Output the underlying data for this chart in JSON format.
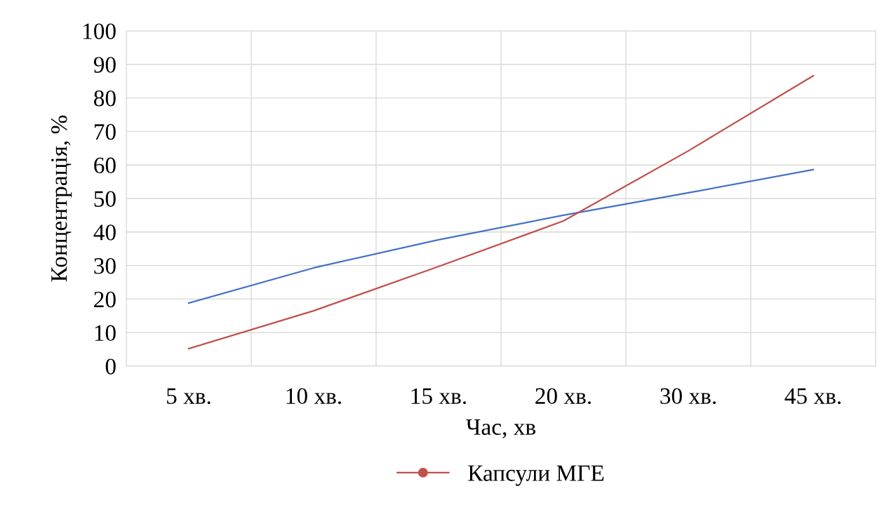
{
  "chart_data": {
    "type": "line",
    "xlabel": "Час, хв",
    "ylabel": "Концентрація, %",
    "categories": [
      "5 хв.",
      "10 хв.",
      "15 хв.",
      "20 хв.",
      "30 хв.",
      "45 хв."
    ],
    "series": [
      {
        "color": "#4472c4",
        "values": [
          18.8,
          29.3,
          37.7,
          45,
          51.7,
          58.6
        ]
      },
      {
        "name": "Капсули МГЕ",
        "color": "#c0504d",
        "values": [
          5.2,
          16.5,
          29.7,
          43.3,
          64.2,
          86.6
        ]
      }
    ],
    "ylim": [
      0,
      100
    ],
    "yticks": [
      0,
      10,
      20,
      30,
      40,
      50,
      60,
      70,
      80,
      90,
      100
    ],
    "grid": true,
    "legend": "bottom",
    "marker": "none",
    "line_style": "solid"
  }
}
